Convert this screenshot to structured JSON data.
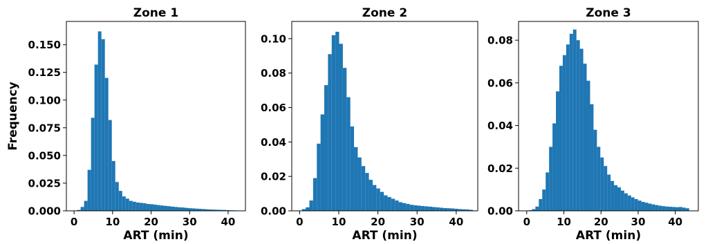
{
  "chart_data": [
    {
      "type": "bar",
      "title": "Zone 1",
      "xlabel": "ART (min)",
      "ylabel": "Frequency",
      "bar_color": "#1f77b4",
      "bin_width": 0.9,
      "xlim": [
        -2,
        44.5
      ],
      "ylim": [
        0,
        0.171
      ],
      "xticks": [
        0,
        10,
        20,
        30,
        40
      ],
      "xtick_labels": [
        "0",
        "10",
        "20",
        "30",
        "40"
      ],
      "yticks": [
        0.0,
        0.025,
        0.05,
        0.075,
        0.1,
        0.125,
        0.15
      ],
      "ytick_labels": [
        "0.000",
        "0.025",
        "0.050",
        "0.075",
        "0.100",
        "0.125",
        "0.150"
      ],
      "grid": false,
      "x": [
        0.8,
        1.7,
        2.6,
        3.5,
        4.4,
        5.3,
        6.2,
        7.1,
        8.0,
        8.9,
        9.8,
        10.7,
        11.6,
        12.5,
        13.4,
        14.3,
        15.2,
        16.1,
        17.0,
        17.9,
        18.8,
        19.7,
        20.6,
        21.5,
        22.4,
        23.3,
        24.2,
        25.1,
        26.0,
        26.9,
        27.8,
        28.7,
        29.6,
        30.5,
        31.4,
        32.3,
        33.2,
        34.1,
        35.0,
        35.9,
        36.8,
        37.7,
        38.6,
        39.5,
        40.4,
        41.3
      ],
      "values": [
        0.0008,
        0.0035,
        0.009,
        0.037,
        0.084,
        0.132,
        0.162,
        0.155,
        0.12,
        0.082,
        0.045,
        0.026,
        0.018,
        0.013,
        0.011,
        0.009,
        0.0082,
        0.0075,
        0.0072,
        0.0068,
        0.0062,
        0.006,
        0.0056,
        0.0052,
        0.0048,
        0.0045,
        0.0042,
        0.0038,
        0.0035,
        0.0032,
        0.003,
        0.0027,
        0.0024,
        0.0022,
        0.002,
        0.0018,
        0.0016,
        0.0014,
        0.0012,
        0.0011,
        0.001,
        0.0009,
        0.0008,
        0.0006,
        0.0005,
        0.0004
      ]
    },
    {
      "type": "bar",
      "title": "Zone 2",
      "xlabel": "ART (min)",
      "ylabel": "",
      "bar_color": "#1f77b4",
      "bin_width": 0.95,
      "xlim": [
        -2,
        45.5
      ],
      "ylim": [
        0,
        0.11
      ],
      "xticks": [
        0,
        10,
        20,
        30,
        40
      ],
      "xtick_labels": [
        "0",
        "10",
        "20",
        "30",
        "40"
      ],
      "yticks": [
        0.0,
        0.02,
        0.04,
        0.06,
        0.08,
        0.1
      ],
      "ytick_labels": [
        "0.00",
        "0.02",
        "0.04",
        "0.06",
        "0.08",
        "0.10"
      ],
      "grid": false,
      "x": [
        0.6,
        1.55,
        2.5,
        3.45,
        4.4,
        5.35,
        6.3,
        7.25,
        8.2,
        9.15,
        10.1,
        11.05,
        12.0,
        12.95,
        13.9,
        14.85,
        15.8,
        16.75,
        17.7,
        18.65,
        19.6,
        20.55,
        21.5,
        22.45,
        23.4,
        24.35,
        25.3,
        26.25,
        27.2,
        28.15,
        29.1,
        30.05,
        31.0,
        31.95,
        32.9,
        33.85,
        34.8,
        35.75,
        36.7,
        37.65,
        38.6,
        39.55,
        40.5,
        41.45,
        42.4,
        43.35
      ],
      "values": [
        0.001,
        0.002,
        0.006,
        0.019,
        0.039,
        0.056,
        0.073,
        0.091,
        0.102,
        0.104,
        0.097,
        0.083,
        0.066,
        0.049,
        0.037,
        0.031,
        0.026,
        0.022,
        0.018,
        0.015,
        0.013,
        0.011,
        0.009,
        0.008,
        0.007,
        0.006,
        0.005,
        0.0045,
        0.004,
        0.0035,
        0.0032,
        0.003,
        0.0028,
        0.0026,
        0.0024,
        0.0022,
        0.002,
        0.0018,
        0.0016,
        0.0015,
        0.0014,
        0.0012,
        0.001,
        0.0009,
        0.0008,
        0.0006
      ]
    },
    {
      "type": "bar",
      "title": "Zone 3",
      "xlabel": "ART (min)",
      "ylabel": "",
      "bar_color": "#1f77b4",
      "bin_width": 0.92,
      "xlim": [
        -2.2,
        46.2
      ],
      "ylim": [
        0,
        0.0888
      ],
      "xticks": [
        0,
        10,
        20,
        30,
        40
      ],
      "xtick_labels": [
        "0",
        "10",
        "20",
        "30",
        "40"
      ],
      "yticks": [
        0.0,
        0.02,
        0.04,
        0.06,
        0.08
      ],
      "ytick_labels": [
        "0.00",
        "0.02",
        "0.04",
        "0.06",
        "0.08"
      ],
      "grid": false,
      "x": [
        0.5,
        1.42,
        2.34,
        3.26,
        4.18,
        5.1,
        6.02,
        6.94,
        7.86,
        8.78,
        9.7,
        10.62,
        11.54,
        12.46,
        13.38,
        14.3,
        15.22,
        16.14,
        17.06,
        17.98,
        18.9,
        19.82,
        20.74,
        21.66,
        22.58,
        23.5,
        24.42,
        25.34,
        26.26,
        27.18,
        28.1,
        29.02,
        29.94,
        30.86,
        31.78,
        32.7,
        33.62,
        34.54,
        35.46,
        36.38,
        37.3,
        38.22,
        39.14,
        40.06,
        40.98,
        41.9,
        42.82
      ],
      "values": [
        0.0003,
        0.0008,
        0.002,
        0.0055,
        0.01,
        0.018,
        0.03,
        0.041,
        0.056,
        0.068,
        0.073,
        0.078,
        0.083,
        0.085,
        0.08,
        0.076,
        0.069,
        0.061,
        0.05,
        0.038,
        0.03,
        0.025,
        0.021,
        0.017,
        0.014,
        0.012,
        0.011,
        0.0095,
        0.0082,
        0.0072,
        0.0063,
        0.0055,
        0.0048,
        0.0042,
        0.0038,
        0.0034,
        0.003,
        0.0027,
        0.0024,
        0.0022,
        0.002,
        0.0019,
        0.0018,
        0.0017,
        0.0018,
        0.0015,
        0.0012
      ]
    }
  ]
}
